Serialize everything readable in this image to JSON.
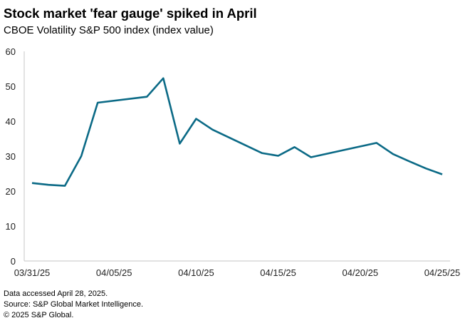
{
  "chart_data": {
    "type": "line",
    "title": "Stock market 'fear gauge' spiked in April",
    "subtitle": "CBOE Volatility S&P 500 index (index value)",
    "xlabel": "",
    "ylabel": "",
    "ylim": [
      0,
      60
    ],
    "yticks": [
      0,
      10,
      20,
      30,
      40,
      50,
      60
    ],
    "xlim_days": [
      0,
      25
    ],
    "xticks": [
      {
        "day": 0,
        "label": "03/31/25"
      },
      {
        "day": 5,
        "label": "04/05/25"
      },
      {
        "day": 10,
        "label": "04/10/25"
      },
      {
        "day": 15,
        "label": "04/15/25"
      },
      {
        "day": 20,
        "label": "04/20/25"
      },
      {
        "day": 25,
        "label": "04/25/25"
      }
    ],
    "series": [
      {
        "name": "CBOE Volatility S&P 500 index",
        "color": "#0b6a86",
        "points": [
          {
            "date": "03/31/25",
            "day": 0,
            "value": 22.3
          },
          {
            "date": "04/01/25",
            "day": 1,
            "value": 21.8
          },
          {
            "date": "04/02/25",
            "day": 2,
            "value": 21.5
          },
          {
            "date": "04/03/25",
            "day": 3,
            "value": 30.0
          },
          {
            "date": "04/04/25",
            "day": 4,
            "value": 45.3
          },
          {
            "date": "04/07/25",
            "day": 7,
            "value": 47.0
          },
          {
            "date": "04/08/25",
            "day": 8,
            "value": 52.3
          },
          {
            "date": "04/09/25",
            "day": 9,
            "value": 33.6
          },
          {
            "date": "04/10/25",
            "day": 10,
            "value": 40.7
          },
          {
            "date": "04/11/25",
            "day": 11,
            "value": 37.6
          },
          {
            "date": "04/14/25",
            "day": 14,
            "value": 30.9
          },
          {
            "date": "04/15/25",
            "day": 15,
            "value": 30.1
          },
          {
            "date": "04/16/25",
            "day": 16,
            "value": 32.6
          },
          {
            "date": "04/17/25",
            "day": 17,
            "value": 29.7
          },
          {
            "date": "04/21/25",
            "day": 21,
            "value": 33.8
          },
          {
            "date": "04/22/25",
            "day": 22,
            "value": 30.6
          },
          {
            "date": "04/23/25",
            "day": 23,
            "value": 28.5
          },
          {
            "date": "04/24/25",
            "day": 24,
            "value": 26.5
          },
          {
            "date": "04/25/25",
            "day": 25,
            "value": 24.8
          }
        ]
      }
    ],
    "grid": false,
    "legend": "none"
  },
  "footer": {
    "line1": "Data accessed April 28, 2025.",
    "line2": "Source: S&P Global Market Intelligence.",
    "line3": "© 2025 S&P Global."
  }
}
